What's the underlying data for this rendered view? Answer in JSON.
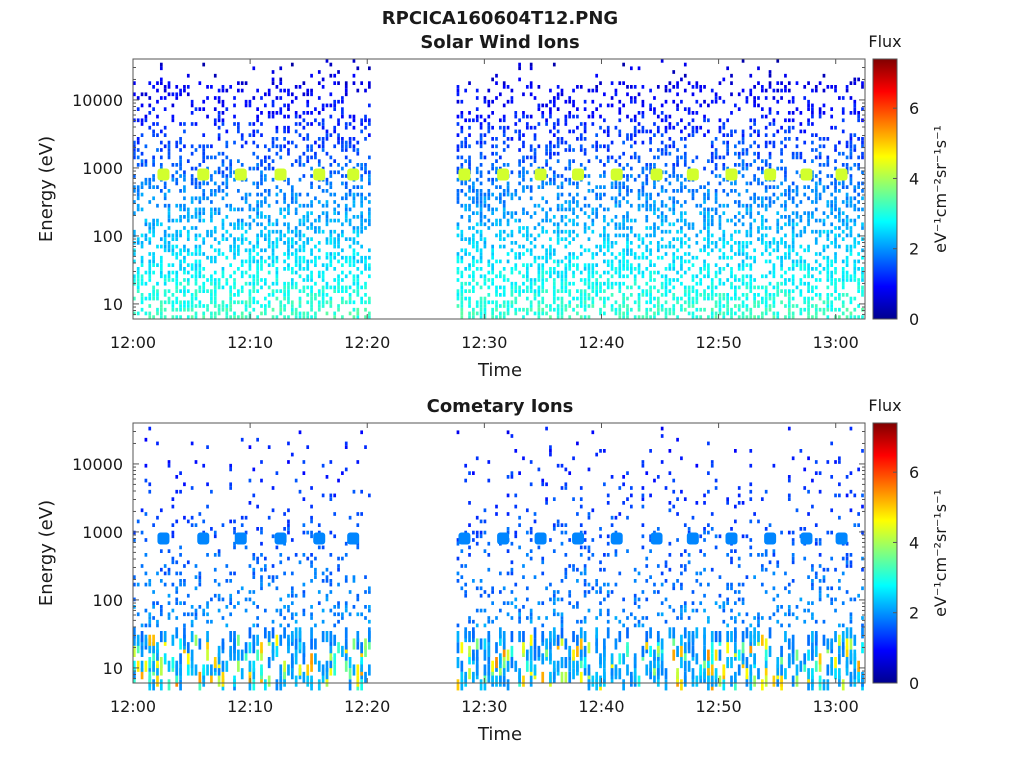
{
  "figure": {
    "title": "RPCICA160604T12.PNG"
  },
  "chart_data": [
    {
      "type": "heatmap",
      "title": "Solar Wind Ions",
      "xlabel": "Time",
      "ylabel": "Energy (eV)",
      "x_tick_labels": [
        "12:00",
        "12:10",
        "12:20",
        "12:30",
        "12:40",
        "12:50",
        "13:00"
      ],
      "x_range_minutes": [
        0,
        62.5
      ],
      "y_scale": "log",
      "y_range": [
        6,
        40000
      ],
      "y_tick_labels": [
        "10",
        "100",
        "1000",
        "10000"
      ],
      "data_gaps_minutes": [
        [
          20.5,
          27.5
        ]
      ],
      "colorbar": {
        "label": "Flux",
        "units": "eV⁻¹cm⁻²sr⁻¹s⁻¹",
        "range": [
          0,
          7.4
        ],
        "tick_labels": [
          "0",
          "2",
          "4",
          "6"
        ],
        "colormap": "jet"
      },
      "peak_energy_eV": 800,
      "peak_times_minutes": [
        2.6,
        6,
        9.2,
        12.6,
        15.9,
        18.8,
        28.3,
        31.6,
        34.8,
        38,
        41.3,
        44.7,
        47.8,
        51.1,
        54.4,
        57.5,
        60.5
      ],
      "peak_flux": 4.3,
      "background_flux_range": [
        0.5,
        3.2
      ]
    },
    {
      "type": "heatmap",
      "title": "Cometary Ions",
      "xlabel": "Time",
      "ylabel": "Energy (eV)",
      "x_tick_labels": [
        "12:00",
        "12:10",
        "12:20",
        "12:30",
        "12:40",
        "12:50",
        "13:00"
      ],
      "x_range_minutes": [
        0,
        62.5
      ],
      "y_scale": "log",
      "y_range": [
        6,
        40000
      ],
      "y_tick_labels": [
        "10",
        "100",
        "1000",
        "10000"
      ],
      "data_gaps_minutes": [
        [
          20.5,
          27.5
        ]
      ],
      "colorbar": {
        "label": "Flux",
        "units": "eV⁻¹cm⁻²sr⁻¹s⁻¹",
        "range": [
          0,
          7.4
        ],
        "tick_labels": [
          "0",
          "2",
          "4",
          "6"
        ],
        "colormap": "jet"
      },
      "peak_energy_eV": 800,
      "peak_times_minutes": [
        2.6,
        6,
        9.2,
        12.6,
        15.9,
        18.8,
        28.3,
        31.6,
        34.8,
        38,
        41.3,
        44.7,
        47.8,
        51.1,
        54.4,
        57.5,
        60.5
      ],
      "peak_flux": 1.9,
      "low_energy_band_eV": [
        6,
        30
      ],
      "low_energy_flux_range": [
        2.5,
        5.5
      ],
      "background_flux_range": [
        1.0,
        2.2
      ]
    }
  ]
}
